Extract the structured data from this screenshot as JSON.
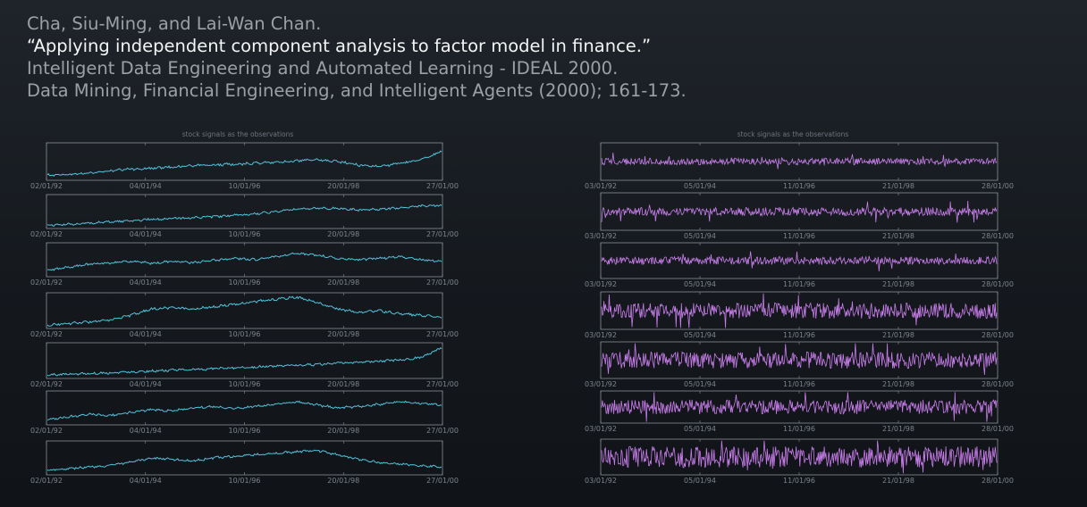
{
  "citation": {
    "line1": "Cha, Siu-Ming, and Lai-Wan Chan.",
    "line2": "“Applying independent component analysis to factor model in finance.”",
    "line3": "Intelligent Data Engineering and Automated Learning - IDEAL 2000.",
    "line4": "Data Mining, Financial Engineering, and Intelligent Agents (2000); 161-173."
  },
  "chart_data": [
    {
      "type": "line",
      "title": "stock signals as the observations",
      "x_tick_labels": [
        "02/01/92",
        "04/01/94",
        "10/01/96",
        "20/01/98",
        "27/01/00"
      ],
      "color": "#4fc3dc",
      "series_count": 7,
      "series": [
        {
          "values": [
            0.1,
            0.12,
            0.16,
            0.22,
            0.28,
            0.3,
            0.34,
            0.38,
            0.4,
            0.42,
            0.45,
            0.48,
            0.52,
            0.55,
            0.5,
            0.4,
            0.35,
            0.45,
            0.55,
            0.8
          ]
        },
        {
          "values": [
            0.05,
            0.08,
            0.12,
            0.16,
            0.2,
            0.24,
            0.27,
            0.3,
            0.33,
            0.37,
            0.42,
            0.5,
            0.58,
            0.62,
            0.6,
            0.55,
            0.58,
            0.62,
            0.68,
            0.7
          ]
        },
        {
          "values": [
            0.15,
            0.25,
            0.35,
            0.4,
            0.45,
            0.38,
            0.45,
            0.4,
            0.48,
            0.55,
            0.5,
            0.6,
            0.7,
            0.65,
            0.55,
            0.5,
            0.55,
            0.6,
            0.5,
            0.45
          ]
        },
        {
          "values": [
            0.05,
            0.1,
            0.15,
            0.2,
            0.35,
            0.55,
            0.6,
            0.55,
            0.62,
            0.7,
            0.78,
            0.85,
            0.92,
            0.75,
            0.55,
            0.45,
            0.5,
            0.4,
            0.35,
            0.3
          ]
        },
        {
          "values": [
            0.05,
            0.08,
            0.1,
            0.12,
            0.15,
            0.18,
            0.2,
            0.22,
            0.25,
            0.28,
            0.3,
            0.33,
            0.35,
            0.38,
            0.42,
            0.45,
            0.48,
            0.52,
            0.6,
            0.9
          ]
        },
        {
          "values": [
            0.1,
            0.2,
            0.3,
            0.25,
            0.35,
            0.45,
            0.4,
            0.5,
            0.55,
            0.48,
            0.55,
            0.62,
            0.7,
            0.6,
            0.5,
            0.55,
            0.62,
            0.7,
            0.65,
            0.6
          ]
        },
        {
          "values": [
            0.1,
            0.15,
            0.2,
            0.25,
            0.35,
            0.5,
            0.45,
            0.4,
            0.5,
            0.55,
            0.6,
            0.65,
            0.7,
            0.75,
            0.6,
            0.45,
            0.35,
            0.3,
            0.25,
            0.2
          ]
        }
      ]
    },
    {
      "type": "line",
      "title": "stock signals as the observations",
      "x_tick_labels": [
        "03/01/92",
        "05/01/94",
        "11/01/96",
        "21/01/98",
        "28/01/00"
      ],
      "color": "#c77dea",
      "series_count": 7,
      "series": [
        {
          "amplitude": 0.18
        },
        {
          "amplitude": 0.22
        },
        {
          "amplitude": 0.22
        },
        {
          "amplitude": 0.42
        },
        {
          "amplitude": 0.45
        },
        {
          "amplitude": 0.45
        },
        {
          "amplitude": 0.6
        }
      ]
    }
  ]
}
